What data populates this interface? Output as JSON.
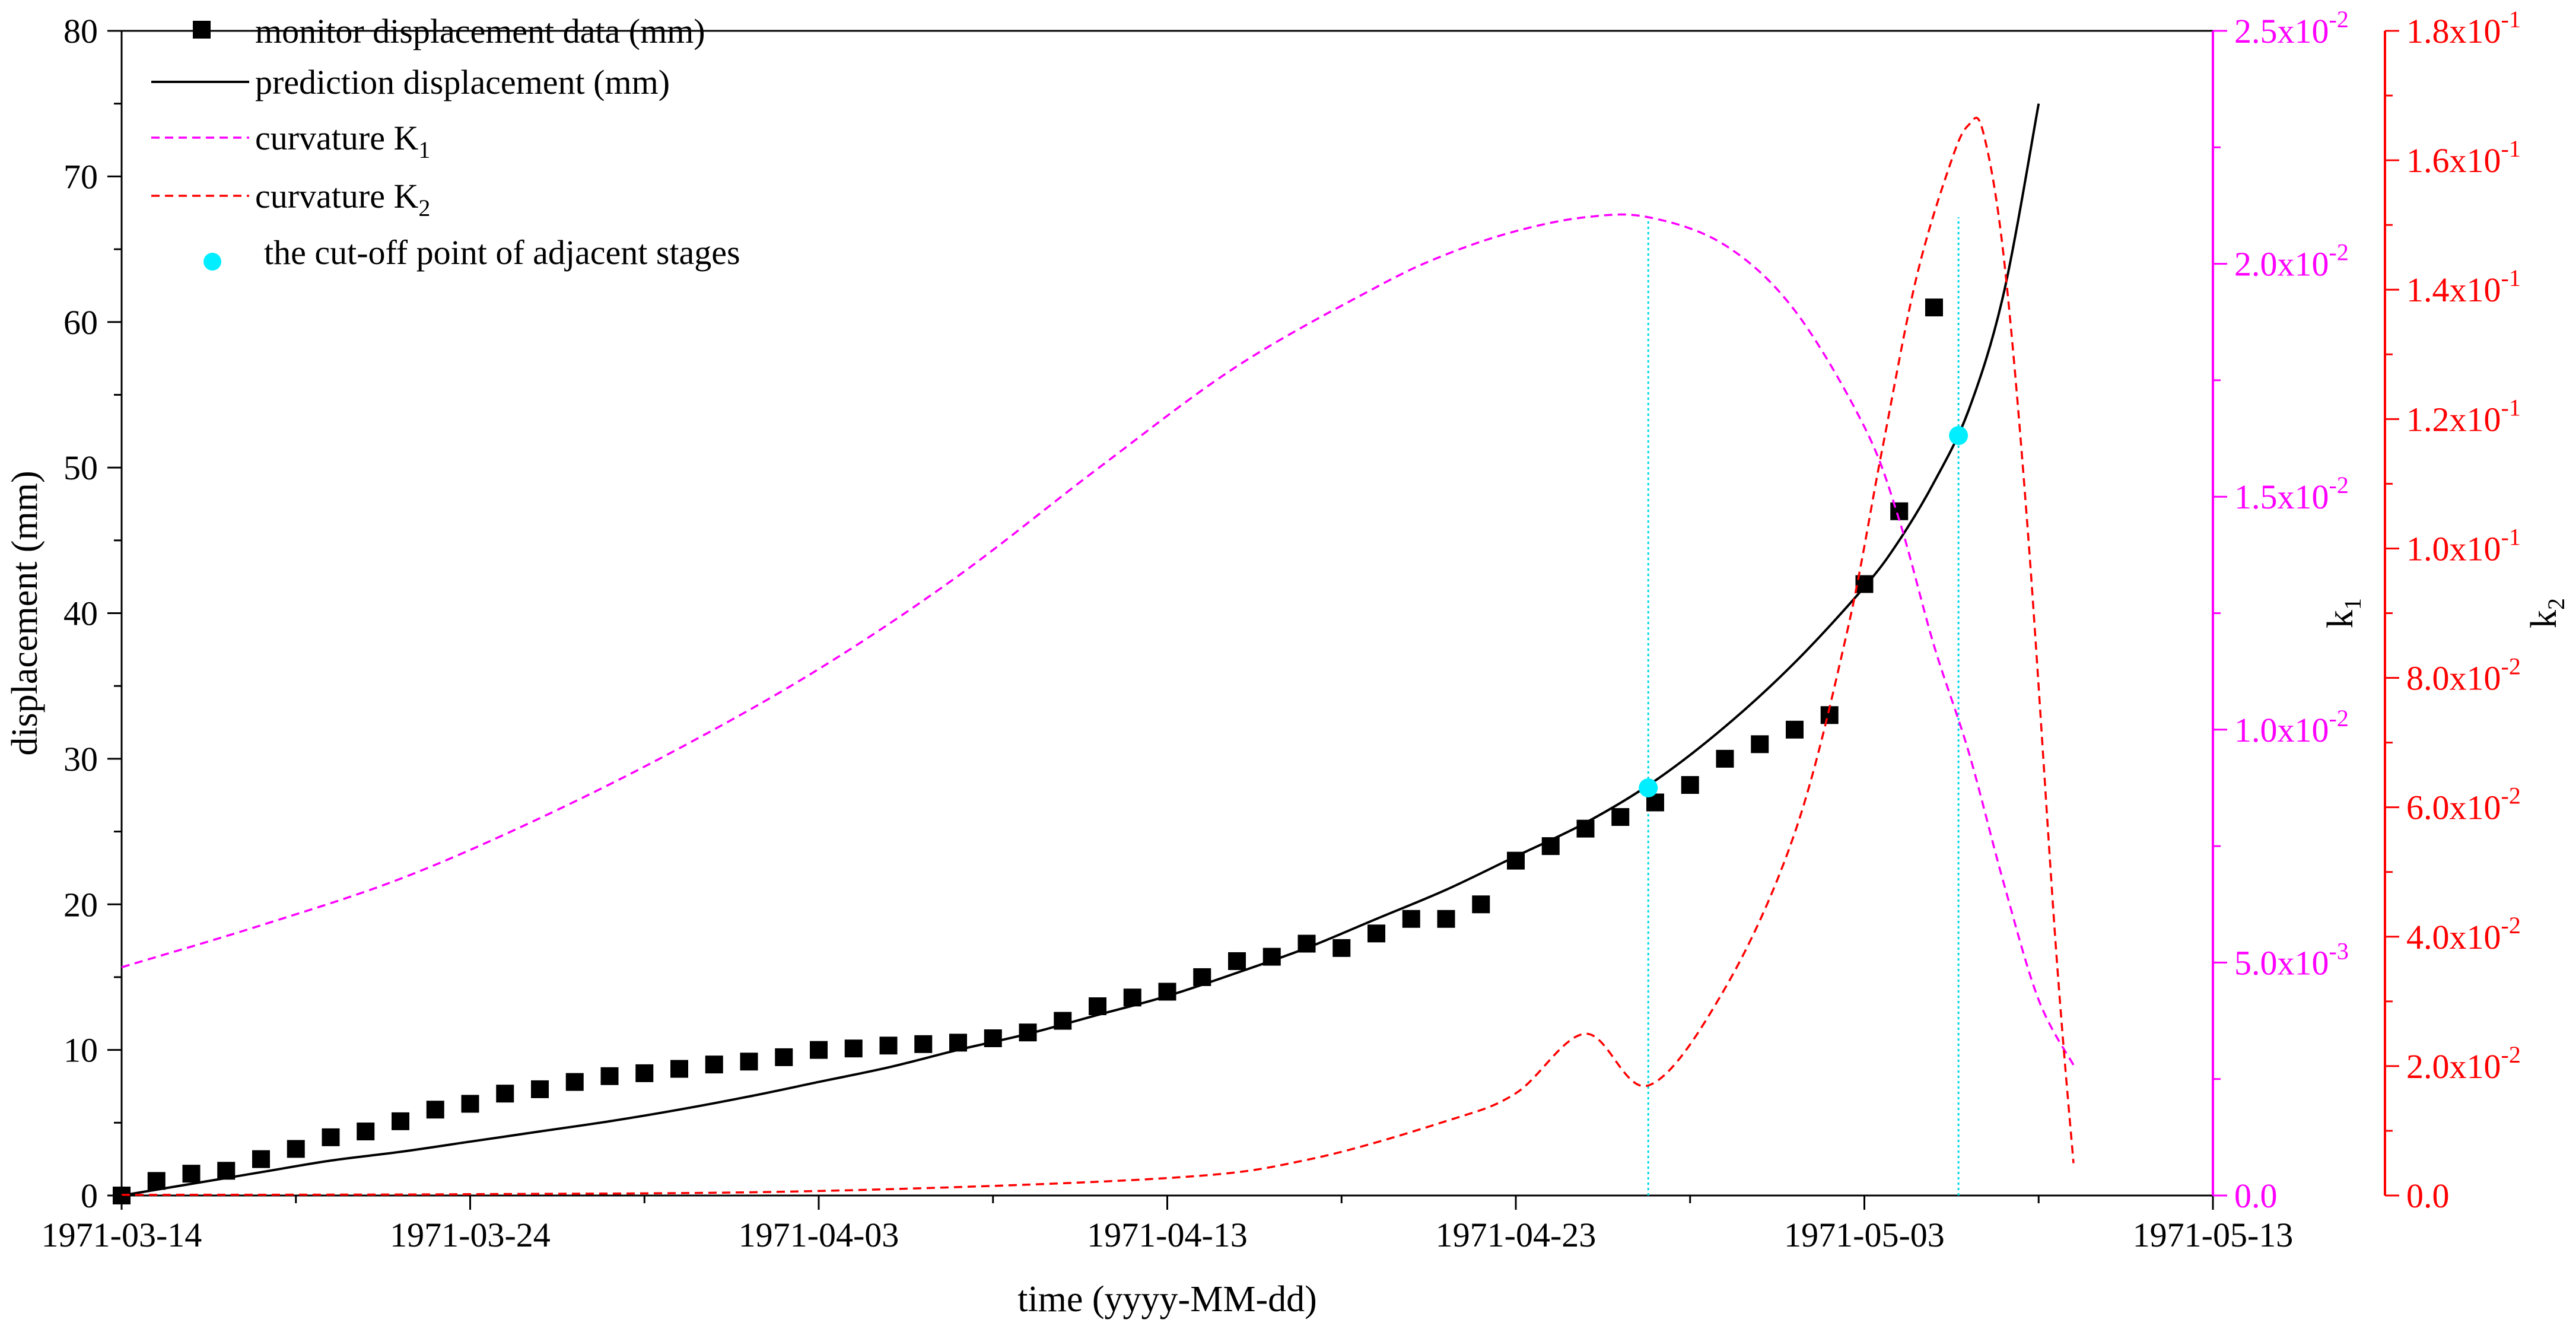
{
  "chart_data": {
    "type": "line",
    "xlabel": "time (yyyy-MM-dd)",
    "ylabel": "displacement (mm)",
    "y2label_main": "k",
    "y2label_sub": "1",
    "y3label_main": "k",
    "y3label_sub": "2",
    "x_domain_days": [
      0,
      60
    ],
    "x_ticks": [
      {
        "day": 0,
        "label": "1971-03-14"
      },
      {
        "day": 10,
        "label": "1971-03-24"
      },
      {
        "day": 20,
        "label": "1971-04-03"
      },
      {
        "day": 30,
        "label": "1971-04-13"
      },
      {
        "day": 40,
        "label": "1971-04-23"
      },
      {
        "day": 50,
        "label": "1971-05-03"
      },
      {
        "day": 60,
        "label": "1971-05-13"
      }
    ],
    "y_left": {
      "min": 0,
      "max": 80,
      "ticks": [
        "0",
        "10",
        "20",
        "30",
        "40",
        "50",
        "60",
        "70",
        "80"
      ]
    },
    "y_k1": {
      "min": 0,
      "max": 0.025,
      "color": "#ff00ff",
      "ticks": [
        {
          "v": 0,
          "m": "0.0",
          "e": ""
        },
        {
          "v": 0.005,
          "m": "5.0x10",
          "e": "-3"
        },
        {
          "v": 0.01,
          "m": "1.0x10",
          "e": "-2"
        },
        {
          "v": 0.015,
          "m": "1.5x10",
          "e": "-2"
        },
        {
          "v": 0.02,
          "m": "2.0x10",
          "e": "-2"
        },
        {
          "v": 0.025,
          "m": "2.5x10",
          "e": "-2"
        }
      ]
    },
    "y_k2": {
      "min": 0,
      "max": 0.18,
      "color": "#ff0000",
      "ticks": [
        {
          "v": 0,
          "m": "0.0",
          "e": ""
        },
        {
          "v": 0.02,
          "m": "2.0x10",
          "e": "-2"
        },
        {
          "v": 0.04,
          "m": "4.0x10",
          "e": "-2"
        },
        {
          "v": 0.06,
          "m": "6.0x10",
          "e": "-2"
        },
        {
          "v": 0.08,
          "m": "8.0x10",
          "e": "-2"
        },
        {
          "v": 0.1,
          "m": "1.0x10",
          "e": "-1"
        },
        {
          "v": 0.12,
          "m": "1.2x10",
          "e": "-1"
        },
        {
          "v": 0.14,
          "m": "1.4x10",
          "e": "-1"
        },
        {
          "v": 0.16,
          "m": "1.6x10",
          "e": "-1"
        },
        {
          "v": 0.18,
          "m": "1.8x10",
          "e": "-1"
        }
      ]
    },
    "legend": {
      "placement": "top-left",
      "entries": [
        {
          "key": "monitor",
          "label": "monitor displacement data (mm)",
          "sub": ""
        },
        {
          "key": "prediction",
          "label": "prediction displacement (mm)",
          "sub": ""
        },
        {
          "key": "k1",
          "label": "curvature K",
          "sub": "1"
        },
        {
          "key": "k2",
          "label": "curvature K",
          "sub": "2"
        },
        {
          "key": "cutoff",
          "label": "the cut-off point of adjacent stages",
          "sub": ""
        }
      ]
    },
    "series": [
      {
        "name": "monitor displacement data (mm)",
        "kind": "scatter",
        "axis": "left",
        "color": "#000000",
        "x": [
          0,
          1,
          2,
          3,
          4,
          5,
          6,
          7,
          8,
          9,
          10,
          11,
          12,
          13,
          14,
          15,
          16,
          17,
          18,
          19,
          20,
          21,
          22,
          23,
          24,
          25,
          26,
          27,
          28,
          29,
          30,
          31,
          32,
          33,
          34,
          35,
          36,
          37,
          38,
          39,
          40,
          41,
          42,
          43,
          44,
          45,
          46,
          47,
          48,
          49,
          50,
          51,
          52
        ],
        "y": [
          0,
          1,
          1.5,
          1.7,
          2.5,
          3.2,
          4,
          4.4,
          5.1,
          5.9,
          6.3,
          7,
          7.3,
          7.8,
          8.2,
          8.4,
          8.7,
          9,
          9.2,
          9.5,
          10,
          10.1,
          10.3,
          10.4,
          10.5,
          10.8,
          11.2,
          12,
          13,
          13.6,
          14,
          15,
          16.1,
          16.4,
          17.3,
          17,
          18,
          19,
          19,
          20,
          23,
          24,
          25.2,
          26,
          27,
          28.2,
          30,
          31,
          32,
          33,
          42,
          47,
          61
        ]
      },
      {
        "name": "prediction displacement (mm)",
        "kind": "line",
        "axis": "left",
        "color": "#000000",
        "x": [
          0,
          2,
          4,
          6,
          8,
          10,
          12,
          14,
          16,
          18,
          20,
          22,
          24,
          26,
          28,
          30,
          32,
          34,
          36,
          38,
          40,
          42,
          44,
          46,
          48,
          50,
          51,
          52,
          53,
          54,
          55
        ],
        "y": [
          0,
          0.8,
          1.6,
          2.4,
          3.0,
          3.7,
          4.4,
          5.1,
          5.9,
          6.8,
          7.8,
          8.8,
          10.0,
          11.1,
          12.4,
          13.7,
          15.3,
          17.0,
          19.0,
          21.0,
          23.3,
          25.6,
          28.5,
          32.2,
          36.6,
          41.8,
          45,
          49,
          54,
          62,
          75
        ]
      },
      {
        "name": "curvature K1",
        "kind": "dashed-line",
        "axis": "k1",
        "color": "#ff00ff",
        "x": [
          0,
          4,
          8,
          12,
          16,
          20,
          24,
          28,
          32,
          36,
          38,
          40,
          42,
          43.8,
          46,
          48,
          50,
          51,
          52,
          53,
          54,
          55,
          56
        ],
        "y": [
          0.0049,
          0.0058,
          0.0068,
          0.0081,
          0.0096,
          0.0113,
          0.0133,
          0.0156,
          0.0178,
          0.0195,
          0.0202,
          0.0207,
          0.021,
          0.021,
          0.0204,
          0.019,
          0.0165,
          0.0145,
          0.0118,
          0.0095,
          0.0067,
          0.0042,
          0.0028
        ]
      },
      {
        "name": "curvature K2",
        "kind": "dashed-line",
        "axis": "k2",
        "color": "#ff0000",
        "x": [
          0,
          10,
          20,
          30,
          34,
          38,
          40,
          42,
          43.8,
          46,
          48,
          49.5,
          50.5,
          51.5,
          52.5,
          53,
          53.4,
          54,
          54.7,
          55.5,
          56
        ],
        "y": [
          0.0001,
          0.0002,
          0.0007,
          0.0027,
          0.0055,
          0.0115,
          0.0158,
          0.025,
          0.017,
          0.032,
          0.056,
          0.087,
          0.115,
          0.142,
          0.16,
          0.1655,
          0.1645,
          0.145,
          0.102,
          0.038,
          0.005
        ]
      },
      {
        "name": "the cut-off point of adjacent stages",
        "kind": "points",
        "axis": "left",
        "color": "#00eeff",
        "x": [
          43.8,
          52.7
        ],
        "y": [
          28,
          52.2
        ]
      }
    ],
    "cutoff_lines_x": [
      43.8,
      52.7
    ]
  }
}
